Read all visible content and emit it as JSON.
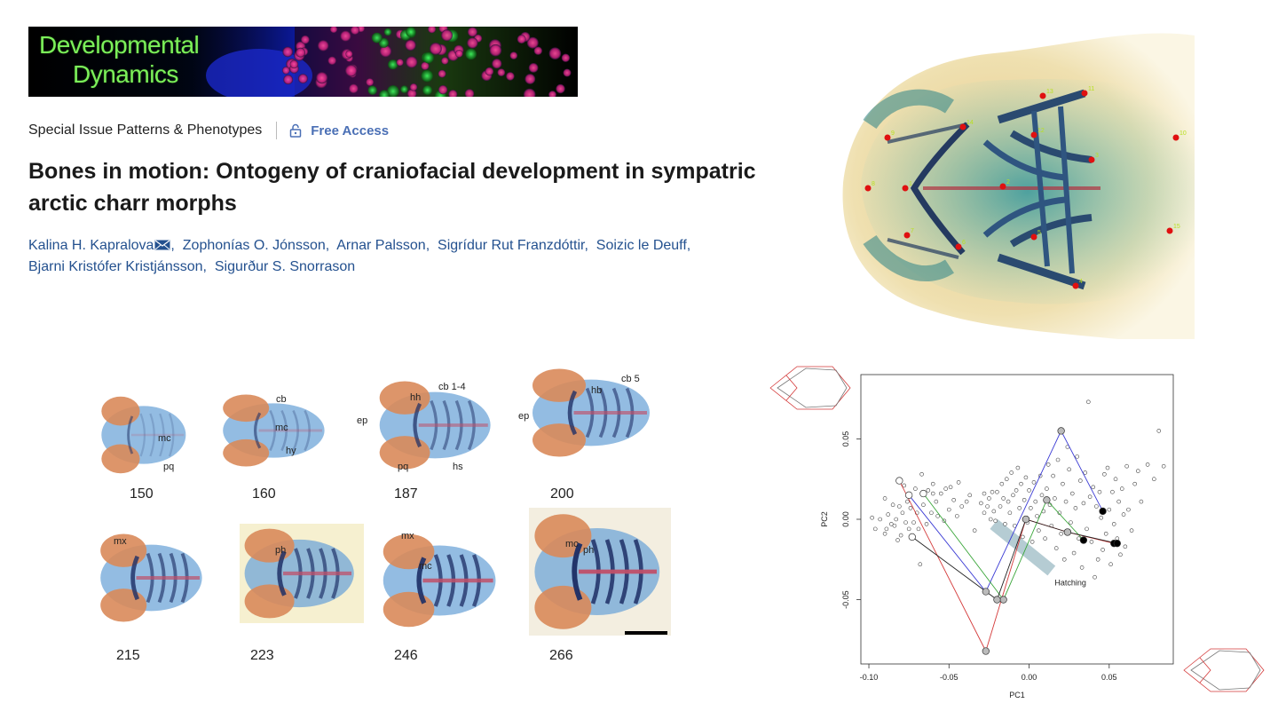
{
  "journal": {
    "name_line1": "Developmental",
    "name_line2": "Dynamics"
  },
  "article": {
    "section": "Special Issue Patterns & Phenotypes",
    "access": "Free Access",
    "title": "Bones in motion: Ontogeny of craniofacial development in sympatric arctic charr morphs",
    "authors": [
      "Kalina H. Kapralova",
      "Zophonías O. Jónsson",
      "Arnar Palsson",
      "Sigrídur Rut Franzdóttir",
      "Soizic le Deuff",
      "Bjarni Kristófer Kristjánsson",
      "Sigurður S. Snorrason"
    ]
  },
  "specimen_landmarks": [
    "1",
    "2",
    "3",
    "4",
    "5",
    "6",
    "7",
    "8",
    "9",
    "10",
    "11",
    "12",
    "13",
    "14",
    "15"
  ],
  "stages": {
    "row1": [
      "150",
      "160",
      "187",
      "200"
    ],
    "row2": [
      "215",
      "223",
      "246",
      "266"
    ]
  },
  "structure_labels": {
    "mc": "mc",
    "pq": "pq",
    "cb": "cb",
    "hy": "hy",
    "hh": "hh",
    "cb14": "cb 1-4",
    "ep": "ep",
    "hs": "hs",
    "hb": "hb",
    "cb5": "cb 5",
    "mx": "mx",
    "ph": "ph"
  },
  "chart_data": {
    "type": "scatter",
    "xlabel": "PC1",
    "ylabel": "PC2",
    "xlim": [
      -0.105,
      0.09
    ],
    "ylim": [
      -0.09,
      0.09
    ],
    "xticks": [
      "-0.10",
      "-0.05",
      "0.00",
      "0.05"
    ],
    "xtick_values": [
      -0.1,
      -0.05,
      0.0,
      0.05
    ],
    "yticks": [
      "-0.05",
      "0.00",
      "0.05"
    ],
    "ytick_values": [
      -0.05,
      0.0,
      0.05
    ],
    "annotation": "Hatching",
    "colors": {
      "red": "#d43a3a",
      "blue": "#3a3ad4",
      "green": "#3aa63a",
      "black": "#222222",
      "band": "#a9c4cc"
    },
    "trajectories": [
      {
        "color": "red",
        "points": [
          [
            -0.081,
            0.024
          ],
          [
            -0.027,
            -0.082
          ],
          [
            -0.002,
            0.0
          ],
          [
            0.024,
            -0.008
          ],
          [
            0.053,
            -0.015
          ]
        ]
      },
      {
        "color": "blue",
        "points": [
          [
            -0.075,
            0.015
          ],
          [
            -0.027,
            -0.045
          ],
          [
            0.02,
            0.055
          ],
          [
            0.046,
            0.005
          ]
        ]
      },
      {
        "color": "green",
        "points": [
          [
            -0.066,
            0.016
          ],
          [
            -0.016,
            -0.05
          ],
          [
            0.011,
            0.012
          ],
          [
            0.034,
            -0.013
          ]
        ]
      },
      {
        "color": "black",
        "points": [
          [
            -0.073,
            -0.011
          ],
          [
            -0.02,
            -0.05
          ],
          [
            -0.002,
            0.0
          ],
          [
            0.024,
            -0.008
          ],
          [
            0.055,
            -0.015
          ]
        ]
      }
    ],
    "cloud": [
      [
        -0.098,
        0.001
      ],
      [
        -0.096,
        -0.006
      ],
      [
        -0.093,
        0.0
      ],
      [
        -0.09,
        -0.009
      ],
      [
        -0.089,
        -0.006
      ],
      [
        -0.088,
        0.003
      ],
      [
        -0.086,
        -0.003
      ],
      [
        -0.085,
        0.009
      ],
      [
        -0.084,
        -0.004
      ],
      [
        -0.083,
        0.0
      ],
      [
        -0.081,
        0.008
      ],
      [
        -0.08,
        -0.01
      ],
      [
        -0.079,
        0.004
      ],
      [
        -0.078,
        0.021
      ],
      [
        -0.077,
        -0.002
      ],
      [
        -0.076,
        0.011
      ],
      [
        -0.075,
        -0.006
      ],
      [
        -0.074,
        0.007
      ],
      [
        -0.072,
        -0.002
      ],
      [
        -0.071,
        0.019
      ],
      [
        -0.07,
        0.004
      ],
      [
        -0.069,
        -0.006
      ],
      [
        -0.067,
        0.028
      ],
      [
        -0.066,
        0.009
      ],
      [
        -0.064,
        -0.003
      ],
      [
        -0.063,
        0.018
      ],
      [
        -0.061,
        0.004
      ],
      [
        -0.06,
        0.022
      ],
      [
        -0.058,
        0.011
      ],
      [
        -0.057,
        0.002
      ],
      [
        -0.055,
        0.016
      ],
      [
        -0.053,
        -0.001
      ],
      [
        -0.052,
        0.019
      ],
      [
        -0.05,
        0.006
      ],
      [
        -0.049,
        0.02
      ],
      [
        -0.047,
        0.012
      ],
      [
        -0.045,
        0.002
      ],
      [
        -0.039,
        0.011
      ],
      [
        -0.037,
        0.015
      ],
      [
        -0.034,
        -0.007
      ],
      [
        -0.03,
        0.01
      ],
      [
        -0.028,
        0.004
      ],
      [
        -0.028,
        0.016
      ],
      [
        -0.026,
        0.008
      ],
      [
        -0.025,
        0.013
      ],
      [
        -0.024,
        0.0
      ],
      [
        -0.023,
        0.017
      ],
      [
        -0.022,
        0.005
      ],
      [
        -0.021,
        -0.001
      ],
      [
        -0.02,
        0.017
      ],
      [
        -0.018,
        0.008
      ],
      [
        -0.017,
        0.022
      ],
      [
        -0.016,
        0.013
      ],
      [
        -0.015,
        -0.003
      ],
      [
        -0.014,
        0.025
      ],
      [
        -0.013,
        0.011
      ],
      [
        -0.012,
        0.004
      ],
      [
        -0.011,
        0.029
      ],
      [
        -0.01,
        0.015
      ],
      [
        -0.009,
        -0.004
      ],
      [
        -0.008,
        0.018
      ],
      [
        -0.007,
        0.032
      ],
      [
        -0.006,
        0.007
      ],
      [
        -0.005,
        0.022
      ],
      [
        -0.004,
        -0.011
      ],
      [
        -0.003,
        0.012
      ],
      [
        -0.002,
        0.026
      ],
      [
        -0.001,
        -0.002
      ],
      [
        0.0,
        0.018
      ],
      [
        0.001,
        0.007
      ],
      [
        0.002,
        -0.014
      ],
      [
        0.003,
        0.023
      ],
      [
        0.004,
        0.011
      ],
      [
        0.005,
        0.002
      ],
      [
        0.006,
        -0.007
      ],
      [
        0.007,
        0.027
      ],
      [
        0.008,
        0.015
      ],
      [
        0.009,
        0.005
      ],
      [
        0.01,
        -0.012
      ],
      [
        0.011,
        0.019
      ],
      [
        0.012,
        0.034
      ],
      [
        0.013,
        0.009
      ],
      [
        0.014,
        -0.004
      ],
      [
        0.015,
        0.027
      ],
      [
        0.016,
        0.013
      ],
      [
        0.017,
        -0.018
      ],
      [
        0.018,
        0.037
      ],
      [
        0.019,
        0.004
      ],
      [
        0.02,
        -0.009
      ],
      [
        0.021,
        0.022
      ],
      [
        0.022,
        -0.025
      ],
      [
        0.023,
        0.011
      ],
      [
        0.024,
        0.045
      ],
      [
        0.025,
        0.031
      ],
      [
        0.026,
        -0.002
      ],
      [
        0.027,
        0.016
      ],
      [
        0.028,
        -0.021
      ],
      [
        0.029,
        0.007
      ],
      [
        0.03,
        0.039
      ],
      [
        0.031,
        -0.012
      ],
      [
        0.032,
        0.024
      ],
      [
        0.033,
        -0.03
      ],
      [
        0.034,
        0.01
      ],
      [
        0.035,
        0.029
      ],
      [
        0.036,
        -0.006
      ],
      [
        0.037,
        0.073
      ],
      [
        0.038,
        0.014
      ],
      [
        0.039,
        -0.014
      ],
      [
        0.04,
        0.02
      ],
      [
        0.041,
        -0.036
      ],
      [
        0.042,
        0.008
      ],
      [
        0.043,
        -0.025
      ],
      [
        0.044,
        0.017
      ],
      [
        0.045,
        0.001
      ],
      [
        0.046,
        -0.019
      ],
      [
        0.047,
        0.028
      ],
      [
        0.048,
        -0.009
      ],
      [
        0.049,
        0.032
      ],
      [
        0.05,
        0.006
      ],
      [
        0.051,
        -0.028
      ],
      [
        0.052,
        0.017
      ],
      [
        0.053,
        -0.003
      ],
      [
        0.054,
        0.025
      ],
      [
        0.055,
        -0.012
      ],
      [
        0.056,
        0.011
      ],
      [
        0.057,
        -0.022
      ],
      [
        0.058,
        0.019
      ],
      [
        0.059,
        0.003
      ],
      [
        0.06,
        -0.017
      ],
      [
        0.061,
        0.033
      ],
      [
        0.062,
        0.006
      ],
      [
        0.064,
        -0.007
      ],
      [
        0.066,
        0.022
      ],
      [
        0.068,
        0.03
      ],
      [
        0.07,
        0.011
      ],
      [
        0.074,
        0.034
      ],
      [
        0.078,
        0.025
      ],
      [
        0.081,
        0.055
      ],
      [
        0.084,
        0.033
      ],
      [
        -0.09,
        0.013
      ],
      [
        -0.044,
        0.023
      ],
      [
        -0.042,
        0.008
      ],
      [
        -0.082,
        -0.013
      ],
      [
        -0.068,
        -0.028
      ],
      [
        -0.06,
        0.016
      ]
    ]
  }
}
